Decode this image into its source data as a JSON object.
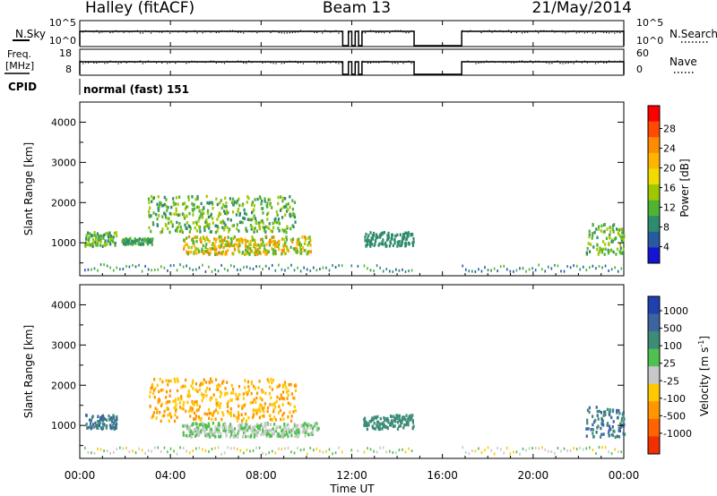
{
  "header": {
    "left": "Halley (fitACF)",
    "center": "Beam 13",
    "right": "21/May/2014"
  },
  "panels": {
    "nsky": {
      "label": "N.Sky",
      "left_ticks": [
        "10^5",
        "10^0"
      ],
      "right_label": "N.Search",
      "right_ticks": [
        "10^5",
        "10^0"
      ]
    },
    "freq": {
      "label_top": "Freq.",
      "label_bottom": "[MHz]",
      "left_ticks": [
        "18",
        "8"
      ],
      "right_label": "Nave",
      "right_ticks": [
        "60",
        "0"
      ]
    },
    "cpid": {
      "label": "CPID",
      "text": "normal (fast) 151"
    }
  },
  "colorbars": {
    "power": {
      "label": "Power [dB]",
      "ticks": [
        "28",
        "24",
        "20",
        "16",
        "12",
        "8",
        "4"
      ],
      "colors": [
        "#ff0000",
        "#ff4a00",
        "#ff8c00",
        "#ffb400",
        "#f0dc00",
        "#a0c800",
        "#50b432",
        "#2e8b6e",
        "#285aa0",
        "#1414d2"
      ]
    },
    "velocity": {
      "label": "Velocity [m s",
      "label_sup": "-1",
      "label_end": "]",
      "ticks": [
        "1000",
        "500",
        "100",
        "25",
        "-25",
        "-100",
        "-500",
        "-1000"
      ],
      "colors": [
        "#2040b0",
        "#3c64a0",
        "#3c8c78",
        "#50c050",
        "#c8c8c8",
        "#ffc800",
        "#ff9600",
        "#ff6400",
        "#f03000"
      ]
    }
  },
  "chart_data": {
    "type": "heatmap",
    "xlabel": "Time UT",
    "ylabel": "Slant Range [km]",
    "x_ticks": [
      "00:00",
      "04:00",
      "08:00",
      "12:00",
      "16:00",
      "20:00",
      "00:00"
    ],
    "xlim_hours": [
      0,
      24
    ],
    "y_ticks": [
      1000,
      2000,
      3000,
      4000
    ],
    "ylim_km": [
      180,
      4500
    ],
    "data_gaps_hours": [
      [
        11.6,
        11.85
      ],
      [
        12.0,
        12.12
      ],
      [
        12.3,
        12.42
      ],
      [
        14.75,
        16.85
      ]
    ],
    "power_regions": [
      {
        "t0": 0.2,
        "t1": 1.6,
        "r0": 900,
        "r1": 1250,
        "levels": [
          16,
          12,
          8
        ]
      },
      {
        "t0": 1.8,
        "t1": 3.2,
        "r0": 950,
        "r1": 1100,
        "levels": [
          12,
          8
        ]
      },
      {
        "t0": 3.0,
        "t1": 9.5,
        "r0": 1250,
        "r1": 2150,
        "levels": [
          16,
          12,
          8
        ]
      },
      {
        "t0": 4.5,
        "t1": 10.2,
        "r0": 700,
        "r1": 1150,
        "levels": [
          24,
          20,
          16,
          12
        ]
      },
      {
        "t0": 12.5,
        "t1": 14.7,
        "r0": 900,
        "r1": 1250,
        "levels": [
          8
        ]
      },
      {
        "t0": 22.3,
        "t1": 24.0,
        "r0": 700,
        "r1": 1450,
        "levels": [
          16,
          12,
          8
        ]
      }
    ],
    "velocity_regions": [
      {
        "t0": 0.2,
        "t1": 1.6,
        "r0": 900,
        "r1": 1250,
        "levels": [
          100,
          500
        ]
      },
      {
        "t0": 3.0,
        "t1": 9.5,
        "r0": 1100,
        "r1": 2150,
        "levels": [
          -100,
          -500
        ]
      },
      {
        "t0": 4.5,
        "t1": 10.5,
        "r0": 700,
        "r1": 1050,
        "levels": [
          25,
          -25
        ]
      },
      {
        "t0": 12.5,
        "t1": 14.7,
        "r0": 900,
        "r1": 1250,
        "levels": [
          100
        ]
      },
      {
        "t0": 22.3,
        "t1": 24.0,
        "r0": 700,
        "r1": 1450,
        "levels": [
          500,
          100
        ]
      }
    ]
  }
}
